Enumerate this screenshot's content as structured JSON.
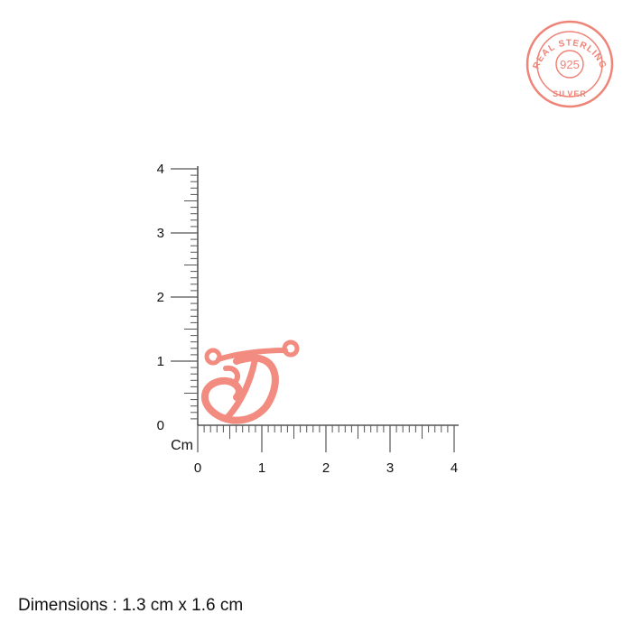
{
  "seal": {
    "top_text": "REAL STERLING",
    "center_text": "925",
    "bottom_text": "SILVER",
    "color": "#ee8478"
  },
  "ruler": {
    "unit_label": "Cm",
    "x_ticks": [
      "0",
      "1",
      "2",
      "3",
      "4"
    ],
    "y_ticks": [
      "0",
      "1",
      "2",
      "3",
      "4"
    ],
    "max_cm": 4
  },
  "product": {
    "description_letter": "D",
    "color": "#f28b80",
    "width_cm": 1.6,
    "height_cm": 1.3
  },
  "dimensions_text": "Dimensions : 1.3 cm x 1.6 cm"
}
